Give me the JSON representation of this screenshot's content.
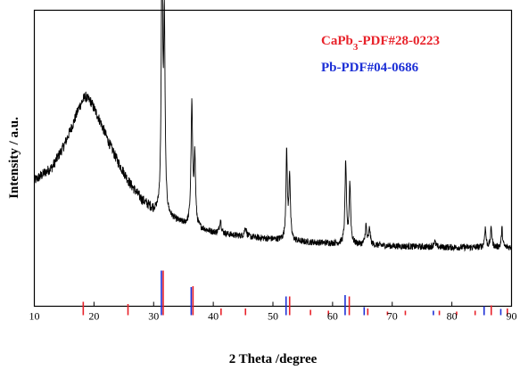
{
  "chart_data": {
    "type": "line",
    "xlabel": "2 Theta /degree",
    "ylabel": "Intensity / a.u.",
    "xlim": [
      10,
      90
    ],
    "xticks": [
      "10",
      "20",
      "30",
      "40",
      "50",
      "60",
      "70",
      "80",
      "90"
    ],
    "grid": false,
    "legend_position": "top-right",
    "pattern": {
      "baseline_points": [
        [
          10,
          0.45
        ],
        [
          13,
          0.5
        ],
        [
          15,
          0.58
        ],
        [
          16.5,
          0.66
        ],
        [
          17.5,
          0.72
        ],
        [
          18.5,
          0.76
        ],
        [
          19.5,
          0.74
        ],
        [
          21,
          0.67
        ],
        [
          22.5,
          0.59
        ],
        [
          24,
          0.52
        ],
        [
          26,
          0.44
        ],
        [
          28,
          0.38
        ],
        [
          30,
          0.34
        ],
        [
          32,
          0.32
        ],
        [
          35,
          0.29
        ],
        [
          40,
          0.26
        ],
        [
          45,
          0.245
        ],
        [
          50,
          0.235
        ],
        [
          55,
          0.225
        ],
        [
          60,
          0.22
        ],
        [
          65,
          0.215
        ],
        [
          70,
          0.21
        ],
        [
          75,
          0.207
        ],
        [
          80,
          0.205
        ],
        [
          85,
          0.205
        ],
        [
          90,
          0.205
        ]
      ],
      "peaks": [
        [
          31.4,
          1.0,
          0.28
        ],
        [
          31.8,
          0.68,
          0.28
        ],
        [
          36.4,
          0.44,
          0.32
        ],
        [
          36.9,
          0.25,
          0.3
        ],
        [
          41.2,
          0.05,
          0.35
        ],
        [
          45.4,
          0.035,
          0.4
        ],
        [
          52.3,
          0.32,
          0.28
        ],
        [
          52.8,
          0.24,
          0.28
        ],
        [
          62.2,
          0.3,
          0.28
        ],
        [
          62.9,
          0.22,
          0.3
        ],
        [
          65.6,
          0.07,
          0.3
        ],
        [
          66.2,
          0.06,
          0.3
        ],
        [
          77.1,
          0.02,
          0.4
        ],
        [
          85.6,
          0.07,
          0.3
        ],
        [
          86.6,
          0.07,
          0.3
        ],
        [
          88.4,
          0.07,
          0.25
        ]
      ],
      "noise_amplitude": 0.012
    },
    "series": [
      {
        "name": "CaPb3-PDF#28-0223",
        "color": "#e8222a",
        "lines": [
          [
            18.2,
            0.3
          ],
          [
            25.7,
            0.25
          ],
          [
            31.6,
            1.0
          ],
          [
            36.6,
            0.65
          ],
          [
            41.3,
            0.15
          ],
          [
            45.4,
            0.15
          ],
          [
            52.8,
            0.42
          ],
          [
            56.3,
            0.12
          ],
          [
            59.3,
            0.1
          ],
          [
            62.8,
            0.42
          ],
          [
            65.9,
            0.15
          ],
          [
            69.2,
            0.08
          ],
          [
            72.2,
            0.1
          ],
          [
            77.9,
            0.1
          ],
          [
            80.8,
            0.08
          ],
          [
            83.9,
            0.1
          ],
          [
            86.6,
            0.22
          ],
          [
            89.3,
            0.15
          ]
        ]
      },
      {
        "name": "Pb-PDF#04-0686",
        "color": "#1c2fd6",
        "lines": [
          [
            31.3,
            1.0
          ],
          [
            36.3,
            0.63
          ],
          [
            52.2,
            0.42
          ],
          [
            62.1,
            0.45
          ],
          [
            65.3,
            0.18
          ],
          [
            76.9,
            0.1
          ],
          [
            85.4,
            0.2
          ],
          [
            88.2,
            0.14
          ]
        ]
      }
    ],
    "legend": [
      {
        "main": "CaPb",
        "sub": "3",
        "rest": "-PDF#28-0223",
        "color": "#e8222a"
      },
      {
        "main": "Pb-PDF#04-0686",
        "sub": "",
        "rest": "",
        "color": "#1c2fd6"
      }
    ]
  }
}
